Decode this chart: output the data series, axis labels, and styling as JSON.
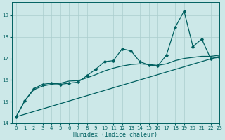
{
  "xlabel": "Humidex (Indice chaleur)",
  "ylabel": "",
  "bg_color": "#cce8e8",
  "grid_color": "#aacece",
  "line_color": "#006060",
  "xlim": [
    -0.5,
    23
  ],
  "ylim": [
    14.0,
    19.6
  ],
  "yticks": [
    14,
    15,
    16,
    17,
    18,
    19
  ],
  "xticks": [
    0,
    1,
    2,
    3,
    4,
    5,
    6,
    7,
    8,
    9,
    10,
    11,
    12,
    13,
    14,
    15,
    16,
    17,
    18,
    19,
    20,
    21,
    22,
    23
  ],
  "series_peak_x": [
    0,
    1,
    2,
    3,
    4,
    5,
    6,
    7,
    8,
    9,
    10,
    11,
    12,
    13,
    14,
    15,
    16,
    17,
    18,
    19,
    20,
    21,
    22,
    23
  ],
  "series_peak_y": [
    14.3,
    15.05,
    15.6,
    15.8,
    15.85,
    15.8,
    15.85,
    15.9,
    16.2,
    16.5,
    16.85,
    16.9,
    17.45,
    17.35,
    16.85,
    16.7,
    16.65,
    17.15,
    18.45,
    19.2,
    17.55,
    17.9,
    17.0,
    17.05
  ],
  "series_trend_x": [
    0,
    23
  ],
  "series_trend_y": [
    14.3,
    17.1
  ],
  "series_mid_x": [
    0,
    1,
    2,
    3,
    4,
    5,
    6,
    7,
    8,
    9,
    10,
    11,
    12,
    13,
    14,
    15,
    16,
    17,
    18,
    19,
    20,
    21,
    22,
    23
  ],
  "series_mid_y": [
    14.3,
    15.05,
    15.55,
    15.72,
    15.8,
    15.85,
    15.95,
    15.97,
    16.1,
    16.25,
    16.42,
    16.55,
    16.65,
    16.72,
    16.75,
    16.72,
    16.68,
    16.75,
    16.9,
    17.0,
    17.05,
    17.1,
    17.1,
    17.15
  ]
}
